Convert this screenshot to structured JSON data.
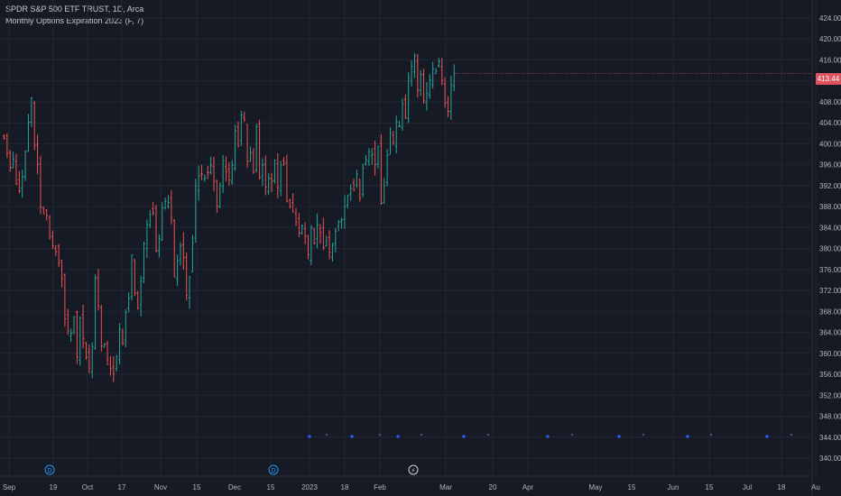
{
  "legend": {
    "symbol_line": "SPDR S&P 500 ETF TRUST, 1D, Arca",
    "indicator_line": "Monthly Options Expiration 2023 (F, 7)"
  },
  "last_price_label": "413.44",
  "colors": {
    "background": "#161a25",
    "grid": "#232734",
    "up": "#26a69a",
    "down": "#ef5350",
    "text": "#b2b5be",
    "price_label_bg": "#e0525f",
    "marker": "#2962ff",
    "event_icon": "#2196f3"
  },
  "chart_data": {
    "type": "ohlc",
    "title": "SPDR S&P 500 ETF TRUST, 1D, Arca",
    "y_ticks": [
      "424.00",
      "420.00",
      "416.00",
      "412.00",
      "408.00",
      "404.00",
      "400.00",
      "396.00",
      "392.00",
      "388.00",
      "384.00",
      "380.00",
      "376.00",
      "372.00",
      "368.00",
      "364.00",
      "360.00",
      "356.00",
      "352.00",
      "348.00",
      "344.00",
      "340.00"
    ],
    "x_ticks": [
      "Sep",
      "19",
      "Oct",
      "17",
      "Nov",
      "15",
      "Dec",
      "15",
      "2023",
      "18",
      "Feb",
      "Mar",
      "20",
      "Apr",
      "May",
      "15",
      "Jun",
      "15",
      "Jul",
      "18",
      "Au"
    ],
    "ylim": [
      339,
      425
    ],
    "grid": true,
    "last_price": 413.44,
    "closes": [
      401.0,
      398.2,
      395.5,
      397.1,
      392.4,
      391.0,
      393.7,
      398.5,
      404.1,
      408.8,
      399.7,
      396.0,
      388.0,
      386.6,
      386.3,
      382.4,
      380.5,
      379.4,
      377.3,
      374.2,
      366.6,
      364.3,
      363.8,
      366.9,
      359.3,
      366.8,
      362.8,
      359.3,
      357.2,
      361.3,
      374.3,
      369.0,
      361.4,
      361.7,
      358.8,
      357.1,
      356.1,
      359.4,
      364.6,
      361.9,
      367.8,
      370.5,
      378.8,
      371.5,
      368.6,
      373.8,
      380.9,
      384.6,
      386.5,
      386.8,
      379.6,
      381.9,
      387.8,
      389.0,
      388.8,
      385.8,
      374.6,
      377.6,
      380.5,
      378.3,
      371.1,
      374.6,
      381.0,
      391.9,
      393.9,
      394.2,
      393.5,
      394.5,
      395.9,
      392.8,
      388.1,
      392.0,
      396.7,
      394.7,
      393.1,
      395.9,
      402.5,
      399.6,
      405.5,
      404.6,
      396.6,
      398.4,
      394.6,
      403.2,
      393.5,
      395.9,
      391.7,
      393.4,
      392.8,
      396.9,
      391.6,
      395.8,
      396.2,
      389.0,
      388.0,
      387.0,
      385.0,
      383.0,
      384.3,
      382.3,
      378.8,
      384.0,
      381.0,
      384.5,
      383.1,
      380.2,
      381.5,
      379.3,
      380.6,
      383.3,
      385.0,
      385.5,
      388.0,
      390.2,
      391.5,
      391.2,
      394.2,
      389.6,
      395.3,
      397.0,
      398.5,
      398.0,
      396.0,
      399.5,
      388.6,
      392.0,
      397.8,
      402.0,
      400.2,
      404.2,
      403.4,
      407.6,
      405.0,
      412.5,
      414.8,
      416.8,
      410.2,
      413.2,
      408.2,
      409.6,
      412.2,
      414.3,
      413.9,
      415.7,
      412.1,
      407.8,
      406.2,
      411.3,
      413.4
    ],
    "event_markers": [
      {
        "date": "Oct",
        "symbol": "D",
        "type": "dividend"
      },
      {
        "date": "Dec",
        "symbol": "D",
        "type": "dividend"
      },
      {
        "date": "Feb",
        "symbol": "⚡",
        "type": "event"
      }
    ],
    "indicator_markers": {
      "name": "Monthly Options Expiration 2023",
      "count": 18
    }
  }
}
